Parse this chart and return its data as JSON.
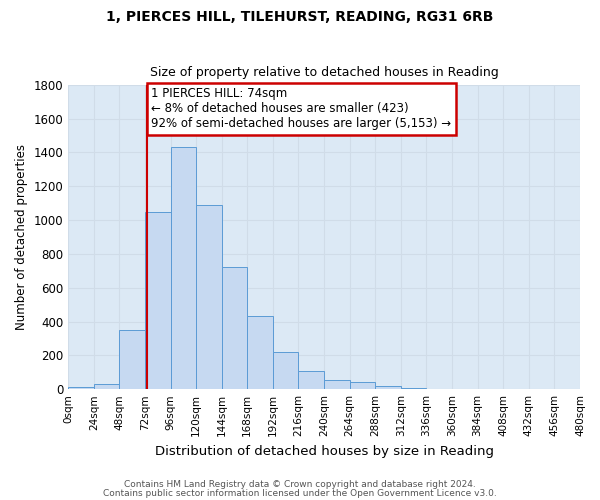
{
  "title1": "1, PIERCES HILL, TILEHURST, READING, RG31 6RB",
  "title2": "Size of property relative to detached houses in Reading",
  "xlabel": "Distribution of detached houses by size in Reading",
  "ylabel": "Number of detached properties",
  "bin_edges": [
    0,
    24,
    48,
    72,
    96,
    120,
    144,
    168,
    192,
    216,
    240,
    264,
    288,
    312,
    336,
    360,
    384,
    408,
    432,
    456,
    480
  ],
  "bar_heights": [
    15,
    30,
    350,
    1050,
    1430,
    1090,
    720,
    435,
    220,
    105,
    55,
    45,
    18,
    5,
    2,
    1,
    0,
    0,
    0,
    0
  ],
  "bar_color": "#c6d9f1",
  "bar_edge_color": "#5b9bd5",
  "property_line_x": 74,
  "annotation_text": "1 PIERCES HILL: 74sqm\n← 8% of detached houses are smaller (423)\n92% of semi-detached houses are larger (5,153) →",
  "annotation_box_edge": "#cc0000",
  "annotation_line_color": "#cc0000",
  "ylim": [
    0,
    1800
  ],
  "yticks": [
    0,
    200,
    400,
    600,
    800,
    1000,
    1200,
    1400,
    1600,
    1800
  ],
  "xtick_labels": [
    "0sqm",
    "24sqm",
    "48sqm",
    "72sqm",
    "96sqm",
    "120sqm",
    "144sqm",
    "168sqm",
    "192sqm",
    "216sqm",
    "240sqm",
    "264sqm",
    "288sqm",
    "312sqm",
    "336sqm",
    "360sqm",
    "384sqm",
    "408sqm",
    "432sqm",
    "456sqm",
    "480sqm"
  ],
  "footer1": "Contains HM Land Registry data © Crown copyright and database right 2024.",
  "footer2": "Contains public sector information licensed under the Open Government Licence v3.0.",
  "grid_color": "#d0dce8",
  "background_color": "#dce9f5"
}
